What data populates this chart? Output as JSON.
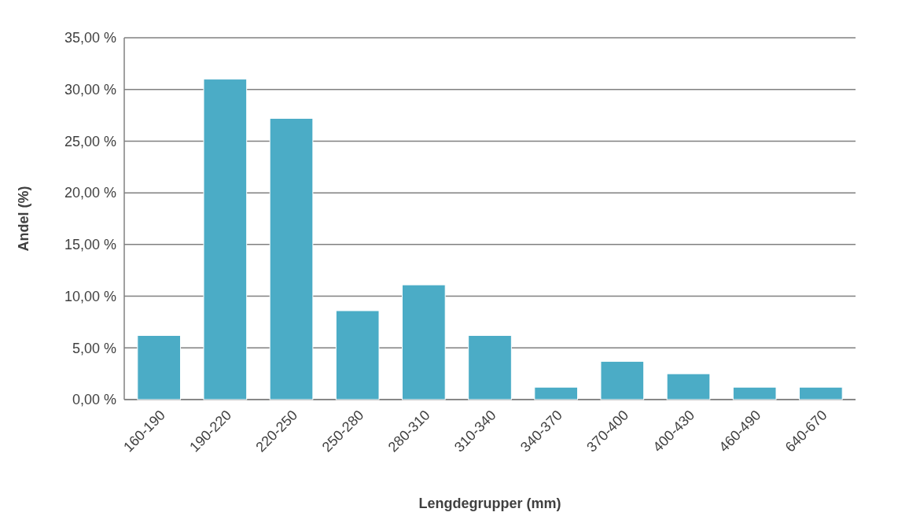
{
  "chart_data": {
    "type": "bar",
    "xlabel": "Lengdegrupper (mm)",
    "ylabel": "Andel (%)",
    "categories": [
      "160-190",
      "190-220",
      "220-250",
      "250-280",
      "280-310",
      "310-340",
      "340-370",
      "370-400",
      "400-430",
      "460-490",
      "640-670"
    ],
    "values": [
      6.2,
      31.0,
      27.2,
      8.6,
      11.1,
      6.2,
      1.2,
      3.7,
      2.5,
      1.2,
      1.2
    ],
    "color": "#4bacc6",
    "ylim": [
      0,
      35
    ],
    "yticks": [
      {
        "value": 0,
        "label": "0,00 %"
      },
      {
        "value": 5,
        "label": "5,00 %"
      },
      {
        "value": 10,
        "label": "10,00 %"
      },
      {
        "value": 15,
        "label": "15,00 %"
      },
      {
        "value": 20,
        "label": "20,00 %"
      },
      {
        "value": 25,
        "label": "25,00 %"
      },
      {
        "value": 30,
        "label": "30,00 %"
      },
      {
        "value": 35,
        "label": "35,00 %"
      }
    ],
    "grid": true
  }
}
